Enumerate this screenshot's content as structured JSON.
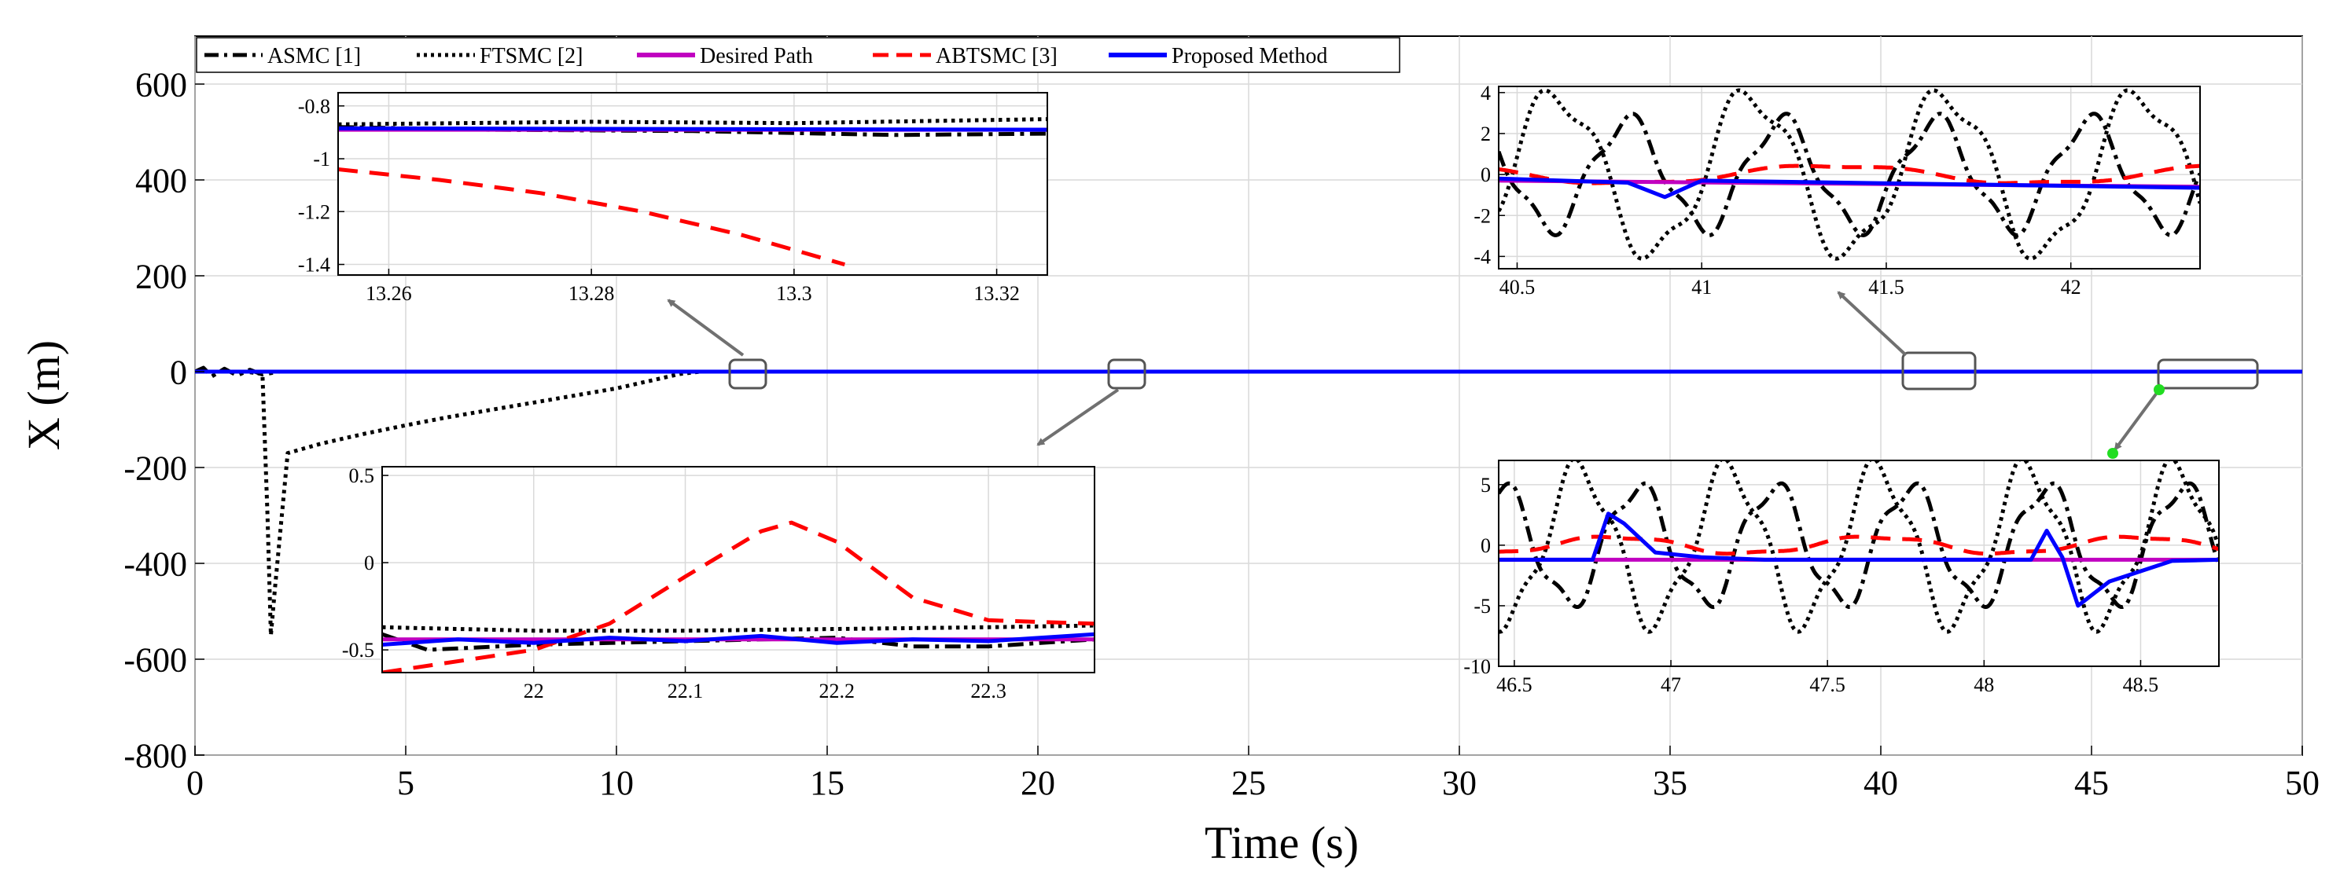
{
  "colors": {
    "asmc": "#000000",
    "ftsmc": "#000000",
    "desired": "#c000c0",
    "abtsmc": "#ff0000",
    "proposed": "#0000ff",
    "arrow": "#707070",
    "marker": "#22dd22",
    "rect": "#555555"
  },
  "legend": [
    "ASMC  [1]",
    "FTSMC [2]",
    "Desired Path",
    "ABTSMC [3]",
    "Proposed Method"
  ],
  "chart_data": [
    {
      "id": "main",
      "type": "line",
      "xlabel": "Time (s)",
      "ylabel": "X (m)",
      "xlim": [
        0,
        50
      ],
      "ylim": [
        -800,
        700
      ],
      "xticks": [
        0,
        5,
        10,
        15,
        20,
        25,
        30,
        35,
        40,
        45,
        50
      ],
      "yticks": [
        -800,
        -600,
        -400,
        -200,
        0,
        200,
        400,
        600
      ],
      "series": [
        {
          "name": "FTSMC [2]",
          "style": "dotted",
          "x": [
            0,
            1.2,
            1.6,
            1.72,
            1.8,
            1.9,
            2.2,
            3,
            4,
            5,
            6,
            7,
            8,
            9,
            10,
            11,
            11.5,
            12,
            50
          ],
          "y": [
            0,
            0,
            -5,
            -300,
            -550,
            -450,
            -170,
            -150,
            -130,
            -112,
            -95,
            -80,
            -65,
            -50,
            -35,
            -15,
            -5,
            0,
            0
          ]
        },
        {
          "name": "ASMC [1]",
          "style": "dashdot",
          "x": [
            0,
            0.2,
            0.4,
            0.7,
            1.0,
            1.3,
            1.6,
            2.0,
            50
          ],
          "y": [
            0,
            8,
            -10,
            6,
            -8,
            4,
            -6,
            0,
            0
          ]
        },
        {
          "name": "ABTSMC [3]",
          "style": "dashed",
          "x": [
            0,
            50
          ],
          "y": [
            0,
            0
          ]
        },
        {
          "name": "Desired Path",
          "style": "solid",
          "x": [
            0,
            50
          ],
          "y": [
            0,
            0
          ]
        },
        {
          "name": "Proposed Method",
          "style": "solid",
          "x": [
            0,
            50
          ],
          "y": [
            0,
            0
          ]
        }
      ]
    },
    {
      "id": "inset1",
      "type": "line",
      "xlim": [
        13.255,
        13.325
      ],
      "ylim": [
        -1.44,
        -0.75
      ],
      "xticks": [
        13.26,
        13.28,
        13.3,
        13.32
      ],
      "yticks": [
        -0.8,
        -1,
        -1.2,
        -1.4
      ],
      "series": [
        {
          "name": "FTSMC [2]",
          "style": "dotted",
          "x": [
            13.255,
            13.28,
            13.3,
            13.325
          ],
          "y": [
            -0.87,
            -0.86,
            -0.865,
            -0.85
          ]
        },
        {
          "name": "ASMC [1]",
          "style": "dashdot",
          "x": [
            13.255,
            13.27,
            13.29,
            13.31,
            13.325
          ],
          "y": [
            -0.88,
            -0.89,
            -0.895,
            -0.91,
            -0.905
          ]
        },
        {
          "name": "Desired Path",
          "style": "solid",
          "x": [
            13.255,
            13.325
          ],
          "y": [
            -0.89,
            -0.89
          ]
        },
        {
          "name": "Proposed Method",
          "style": "solid",
          "x": [
            13.255,
            13.325
          ],
          "y": [
            -0.885,
            -0.89
          ]
        },
        {
          "name": "ABTSMC [3]",
          "style": "dashed",
          "x": [
            13.255,
            13.265,
            13.275,
            13.285,
            13.295,
            13.305
          ],
          "y": [
            -1.04,
            -1.08,
            -1.13,
            -1.2,
            -1.29,
            -1.4
          ]
        }
      ]
    },
    {
      "id": "inset2",
      "type": "line",
      "xlim": [
        21.9,
        22.37
      ],
      "ylim": [
        -0.63,
        0.55
      ],
      "xticks": [
        22,
        22.1,
        22.2,
        22.3
      ],
      "yticks": [
        0.5,
        0,
        -0.5
      ],
      "series": [
        {
          "name": "FTSMC [2]",
          "style": "dotted",
          "x": [
            21.9,
            22.0,
            22.1,
            22.2,
            22.3,
            22.37
          ],
          "y": [
            -0.37,
            -0.39,
            -0.39,
            -0.38,
            -0.37,
            -0.36
          ]
        },
        {
          "name": "ASMC [1]",
          "style": "dashdot",
          "x": [
            21.9,
            21.93,
            22.0,
            22.05,
            22.15,
            22.2,
            22.25,
            22.3,
            22.37
          ],
          "y": [
            -0.41,
            -0.5,
            -0.47,
            -0.46,
            -0.44,
            -0.43,
            -0.48,
            -0.48,
            -0.44
          ]
        },
        {
          "name": "Desired Path",
          "style": "solid",
          "x": [
            21.9,
            22.37
          ],
          "y": [
            -0.44,
            -0.44
          ]
        },
        {
          "name": "ABTSMC [3]",
          "style": "dashed",
          "x": [
            21.9,
            22.0,
            22.05,
            22.1,
            22.15,
            22.17,
            22.2,
            22.25,
            22.3,
            22.37
          ],
          "y": [
            -0.63,
            -0.5,
            -0.35,
            -0.08,
            0.18,
            0.23,
            0.12,
            -0.2,
            -0.33,
            -0.35
          ]
        },
        {
          "name": "Proposed Method",
          "style": "solid",
          "x": [
            21.9,
            21.95,
            22.0,
            22.05,
            22.1,
            22.15,
            22.2,
            22.25,
            22.3,
            22.37
          ],
          "y": [
            -0.47,
            -0.44,
            -0.46,
            -0.43,
            -0.45,
            -0.42,
            -0.46,
            -0.44,
            -0.45,
            -0.41
          ]
        }
      ]
    },
    {
      "id": "inset3",
      "type": "line",
      "xlim": [
        40.45,
        42.35
      ],
      "ylim": [
        -4.6,
        4.3
      ],
      "xticks": [
        40.5,
        41,
        41.5,
        42
      ],
      "yticks": [
        4,
        2,
        0,
        -2,
        -4
      ],
      "series": [
        {
          "name": "FTSMC [2]",
          "style": "dotted",
          "freq": 1.9,
          "amp": 3.9,
          "phase": 0.6
        },
        {
          "name": "ASMC [1]",
          "style": "dashdot",
          "freq": 2.4,
          "amp": 2.6,
          "phase": 2.1
        },
        {
          "name": "ABTSMC [3]",
          "style": "dashed",
          "freq": 0.9,
          "amp": 0.45,
          "phase": 0.2
        },
        {
          "name": "Desired Path",
          "style": "solid",
          "x": [
            40.45,
            42.35
          ],
          "y": [
            -0.3,
            -0.6
          ]
        },
        {
          "name": "Proposed Method",
          "style": "solid",
          "x": [
            40.45,
            40.8,
            40.9,
            41.0,
            42.35
          ],
          "y": [
            -0.2,
            -0.4,
            -1.1,
            -0.3,
            -0.65
          ]
        }
      ]
    },
    {
      "id": "inset4",
      "type": "line",
      "xlim": [
        46.45,
        48.75
      ],
      "ylim": [
        -10,
        7
      ],
      "xticks": [
        46.5,
        47,
        47.5,
        48,
        48.5
      ],
      "yticks": [
        5,
        0,
        -5,
        -10
      ],
      "series": [
        {
          "name": "FTSMC [2]",
          "style": "dotted",
          "freq": 2.1,
          "amp": 6.3,
          "phase": 1.0
        },
        {
          "name": "ASMC [1]",
          "style": "dashdot",
          "freq": 2.3,
          "amp": 4.8,
          "phase": 2.5
        },
        {
          "name": "ABTSMC [3]",
          "style": "dashed",
          "freq": 1.2,
          "amp": 0.7,
          "phase": 0.4
        },
        {
          "name": "Desired Path",
          "style": "solid",
          "x": [
            46.45,
            48.75
          ],
          "y": [
            -1.2,
            -1.2
          ]
        },
        {
          "name": "Proposed Method",
          "style": "solid",
          "x": [
            46.45,
            46.75,
            46.8,
            46.85,
            46.95,
            47.1,
            47.3,
            48.15,
            48.2,
            48.25,
            48.3,
            48.4,
            48.6,
            48.75
          ],
          "y": [
            -1.2,
            -1.2,
            2.6,
            1.8,
            -0.6,
            -1.0,
            -1.2,
            -1.2,
            1.2,
            -1.0,
            -5.0,
            -3.0,
            -1.3,
            -1.2
          ]
        }
      ]
    }
  ]
}
